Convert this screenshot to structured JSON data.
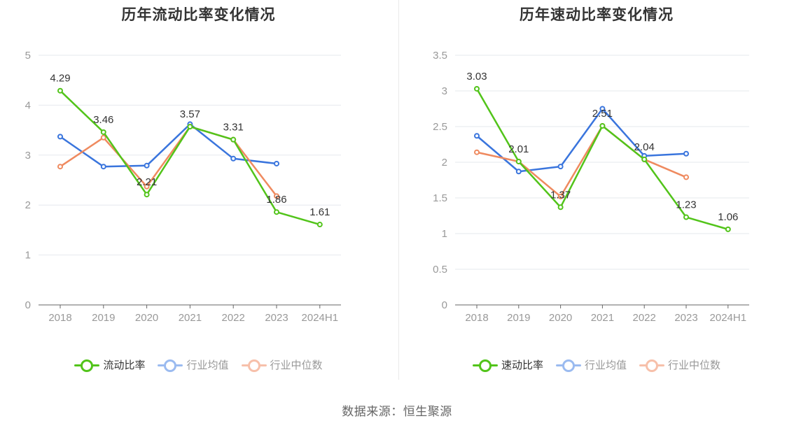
{
  "source_text": "数据来源：恒生聚源",
  "chart_data": [
    {
      "type": "line",
      "title": "历年流动比率变化情况",
      "categories": [
        "2018",
        "2019",
        "2020",
        "2021",
        "2022",
        "2023",
        "2024H1"
      ],
      "ylim": [
        0,
        5
      ],
      "yticks": [
        "0",
        "1",
        "2",
        "3",
        "4",
        "5"
      ],
      "grid": true,
      "legend_position": "bottom",
      "series": [
        {
          "name": "流动比率",
          "color": "#52c41a",
          "values": [
            4.29,
            3.46,
            2.21,
            3.57,
            3.31,
            1.86,
            1.61
          ],
          "labels": [
            "4.29",
            "3.46",
            "2.21",
            "3.57",
            "3.31",
            "1.86",
            "1.61"
          ],
          "muted": false
        },
        {
          "name": "行业均值",
          "color": "#3a75dd",
          "values": [
            3.37,
            2.77,
            2.79,
            3.62,
            2.93,
            2.83,
            null
          ],
          "muted": true
        },
        {
          "name": "行业中位数",
          "color": "#ef8a5f",
          "values": [
            2.77,
            3.35,
            2.37,
            3.57,
            3.31,
            2.18,
            null
          ],
          "muted": true
        }
      ]
    },
    {
      "type": "line",
      "title": "历年速动比率变化情况",
      "categories": [
        "2018",
        "2019",
        "2020",
        "2021",
        "2022",
        "2023",
        "2024H1"
      ],
      "ylim": [
        0,
        3.5
      ],
      "yticks": [
        "0",
        "0.5",
        "1",
        "1.5",
        "2",
        "2.5",
        "3",
        "3.5"
      ],
      "grid": true,
      "legend_position": "bottom",
      "series": [
        {
          "name": "速动比率",
          "color": "#52c41a",
          "values": [
            3.03,
            2.01,
            1.37,
            2.51,
            2.04,
            1.23,
            1.06
          ],
          "labels": [
            "3.03",
            "2.01",
            "1.37",
            "2.51",
            "2.04",
            "1.23",
            "1.06"
          ],
          "muted": false
        },
        {
          "name": "行业均值",
          "color": "#3a75dd",
          "values": [
            2.37,
            1.87,
            1.94,
            2.75,
            2.09,
            2.12,
            null
          ],
          "muted": true
        },
        {
          "name": "行业中位数",
          "color": "#ef8a5f",
          "values": [
            2.14,
            2.01,
            1.52,
            2.51,
            2.04,
            1.79,
            null
          ],
          "muted": true
        }
      ]
    }
  ]
}
